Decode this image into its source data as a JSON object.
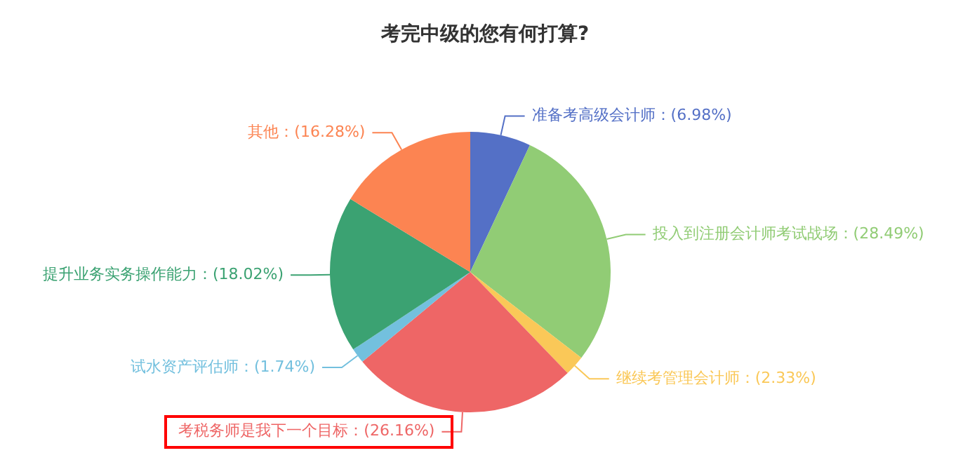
{
  "chart_data": {
    "type": "pie",
    "title": "考完中级的您有何打算?",
    "categories": [
      "准备考高级会计师",
      "投入到注册会计师考试战场",
      "继续考管理会计师",
      "考税务师是我下一个目标",
      "试水资产评估师",
      "提升业务实务操作能力",
      "其他"
    ],
    "values": [
      6.98,
      28.49,
      2.33,
      26.16,
      1.74,
      18.02,
      16.28
    ],
    "value_labels": [
      "(6.98%)",
      "(28.49%)",
      "(2.33%)",
      "(26.16%)",
      "(1.74%)",
      "(18.02%)",
      "(16.28%)"
    ],
    "colors": [
      "#5470c6",
      "#91cc75",
      "#fac858",
      "#ee6666",
      "#73c0de",
      "#3ba272",
      "#fc8452"
    ],
    "legend": false
  }
}
